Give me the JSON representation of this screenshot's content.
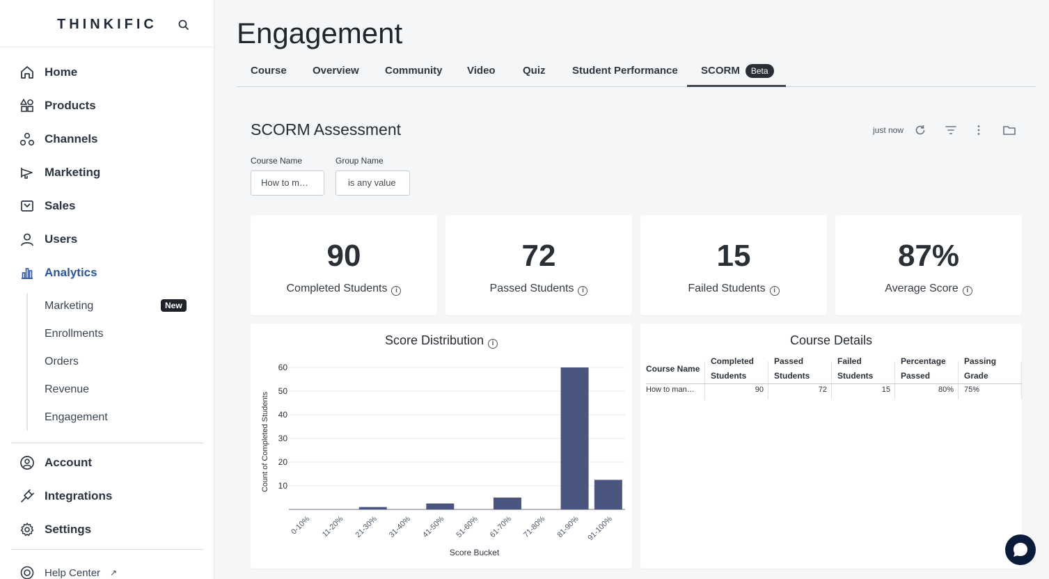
{
  "brand": {
    "name": "THINKIFIC"
  },
  "nav": {
    "items": [
      {
        "label": "Home"
      },
      {
        "label": "Products"
      },
      {
        "label": "Channels"
      },
      {
        "label": "Marketing"
      },
      {
        "label": "Sales"
      },
      {
        "label": "Users"
      },
      {
        "label": "Analytics"
      }
    ],
    "analytics_sub": [
      {
        "label": "Marketing"
      },
      {
        "label": "Enrollments"
      },
      {
        "label": "Orders"
      },
      {
        "label": "Revenue"
      },
      {
        "label": "Engagement"
      }
    ],
    "new_badge": "New",
    "bottom": [
      {
        "label": "Account"
      },
      {
        "label": "Integrations"
      },
      {
        "label": "Settings"
      }
    ],
    "help": "Help Center"
  },
  "page": {
    "title": "Engagement",
    "tabs": [
      {
        "label": "Course"
      },
      {
        "label": "Overview"
      },
      {
        "label": "Community"
      },
      {
        "label": "Video"
      },
      {
        "label": "Quiz"
      },
      {
        "label": "Student Performance"
      },
      {
        "label": "SCORM"
      }
    ],
    "beta_badge": "Beta",
    "active_tab": "SCORM"
  },
  "dashboard": {
    "title": "SCORM Assessment",
    "last_updated": "just now",
    "filters": [
      {
        "label": "Course Name",
        "value": "How to m…"
      },
      {
        "label": "Group Name",
        "value": "is any value"
      }
    ]
  },
  "kpis": [
    {
      "value": "90",
      "label": "Completed Students"
    },
    {
      "value": "72",
      "label": "Passed Students"
    },
    {
      "value": "15",
      "label": "Failed Students"
    },
    {
      "value": "87%",
      "label": "Average Score"
    }
  ],
  "chart_data": {
    "type": "bar",
    "title": "Score Distribution",
    "xlabel": "Score Bucket",
    "ylabel": "Count of Completed Students",
    "categories": [
      "0-10%",
      "11-20%",
      "21-30%",
      "31-40%",
      "41-50%",
      "51-60%",
      "61-70%",
      "71-80%",
      "81-90%",
      "91-100%"
    ],
    "values": [
      0,
      0,
      1,
      0,
      2.5,
      0,
      5,
      0,
      60,
      12.5
    ],
    "yticks": [
      10,
      20,
      30,
      40,
      50,
      60
    ],
    "ylim": [
      0,
      60
    ],
    "grid": true,
    "bar_color": "#4b5680"
  },
  "course_table": {
    "title": "Course Details",
    "columns": [
      [
        "Course Name"
      ],
      [
        "Completed",
        "Students"
      ],
      [
        "Passed",
        "Students"
      ],
      [
        "Failed",
        "Students"
      ],
      [
        "Percentage",
        "Passed"
      ],
      [
        "Passing",
        "Grade"
      ]
    ],
    "rows": [
      [
        "How to man…",
        "90",
        "72",
        "15",
        "80%",
        "75%"
      ]
    ]
  },
  "colors": {
    "accent": "#2b55a3",
    "bar": "#4b5680",
    "chat": "#0b1c3a"
  }
}
